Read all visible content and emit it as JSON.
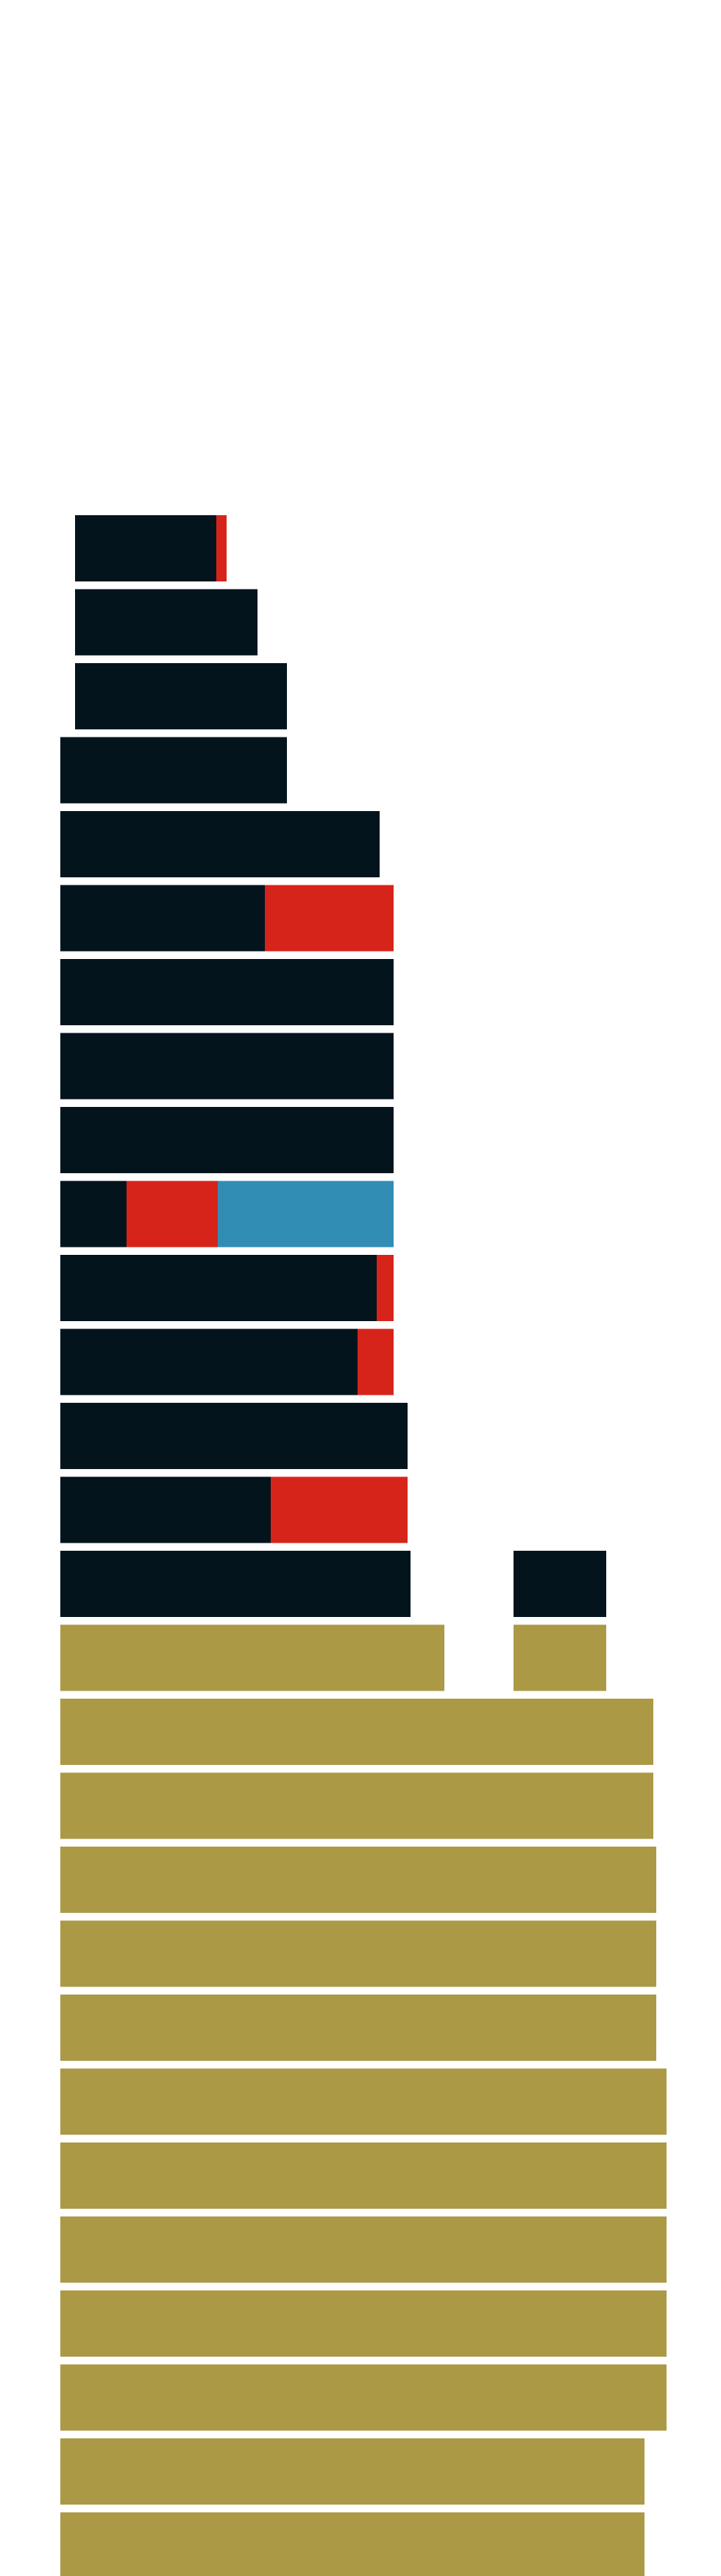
{
  "chart_data": {
    "type": "bar",
    "orientation": "horizontal",
    "stacked": true,
    "colors": {
      "dark": "#03141d",
      "red": "#d6241b",
      "blue": "#328db5",
      "gold": "#ab9945"
    },
    "title": "",
    "xlabel": "",
    "ylabel": "",
    "grid": false,
    "legend": "none",
    "ticks": "none",
    "rows": [
      {
        "segments": [
          {
            "start": 22,
            "end": 214,
            "color": "dark"
          },
          {
            "start": 214,
            "end": 228,
            "color": "red"
          }
        ]
      },
      {
        "segments": [
          {
            "start": 22,
            "end": 270,
            "color": "dark"
          }
        ]
      },
      {
        "segments": [
          {
            "start": 22,
            "end": 310,
            "color": "dark"
          }
        ]
      },
      {
        "segments": [
          {
            "start": 2,
            "end": 310,
            "color": "dark"
          }
        ]
      },
      {
        "segments": [
          {
            "start": 2,
            "end": 436,
            "color": "dark"
          }
        ]
      },
      {
        "segments": [
          {
            "start": 2,
            "end": 280,
            "color": "dark"
          },
          {
            "start": 280,
            "end": 455,
            "color": "red"
          }
        ]
      },
      {
        "segments": [
          {
            "start": 2,
            "end": 455,
            "color": "dark"
          }
        ]
      },
      {
        "segments": [
          {
            "start": 2,
            "end": 455,
            "color": "dark"
          }
        ]
      },
      {
        "segments": [
          {
            "start": 2,
            "end": 455,
            "color": "dark"
          }
        ]
      },
      {
        "segments": [
          {
            "start": 2,
            "end": 92,
            "color": "dark"
          },
          {
            "start": 92,
            "end": 216,
            "color": "red"
          },
          {
            "start": 216,
            "end": 455,
            "color": "blue"
          }
        ]
      },
      {
        "segments": [
          {
            "start": 2,
            "end": 432,
            "color": "dark"
          },
          {
            "start": 432,
            "end": 455,
            "color": "red"
          }
        ]
      },
      {
        "segments": [
          {
            "start": 2,
            "end": 406,
            "color": "dark"
          },
          {
            "start": 406,
            "end": 455,
            "color": "red"
          }
        ]
      },
      {
        "segments": [
          {
            "start": 2,
            "end": 474,
            "color": "dark"
          }
        ]
      },
      {
        "segments": [
          {
            "start": 2,
            "end": 288,
            "color": "dark"
          },
          {
            "start": 288,
            "end": 474,
            "color": "red"
          }
        ]
      },
      {
        "segments": [
          {
            "start": 2,
            "end": 478,
            "color": "dark"
          },
          {
            "start": 618,
            "end": 744,
            "color": "dark"
          }
        ]
      },
      {
        "segments": [
          {
            "start": 2,
            "end": 524,
            "color": "gold"
          },
          {
            "start": 618,
            "end": 744,
            "color": "gold"
          }
        ]
      },
      {
        "segments": [
          {
            "start": 2,
            "end": 808,
            "color": "gold"
          }
        ]
      },
      {
        "segments": [
          {
            "start": 2,
            "end": 808,
            "color": "gold"
          }
        ]
      },
      {
        "segments": [
          {
            "start": 2,
            "end": 812,
            "color": "gold"
          }
        ]
      },
      {
        "segments": [
          {
            "start": 2,
            "end": 812,
            "color": "gold"
          }
        ]
      },
      {
        "segments": [
          {
            "start": 2,
            "end": 812,
            "color": "gold"
          }
        ]
      },
      {
        "segments": [
          {
            "start": 2,
            "end": 826,
            "color": "gold"
          }
        ]
      },
      {
        "segments": [
          {
            "start": 2,
            "end": 826,
            "color": "gold"
          }
        ]
      },
      {
        "segments": [
          {
            "start": 2,
            "end": 826,
            "color": "gold"
          }
        ]
      },
      {
        "segments": [
          {
            "start": 2,
            "end": 826,
            "color": "gold"
          }
        ]
      },
      {
        "segments": [
          {
            "start": 2,
            "end": 826,
            "color": "gold"
          }
        ]
      },
      {
        "segments": [
          {
            "start": 2,
            "end": 796,
            "color": "gold"
          }
        ]
      },
      {
        "segments": [
          {
            "start": 2,
            "end": 796,
            "color": "gold"
          }
        ]
      },
      {
        "segments": [
          {
            "start": 2,
            "end": 796,
            "color": "gold"
          }
        ]
      }
    ]
  }
}
